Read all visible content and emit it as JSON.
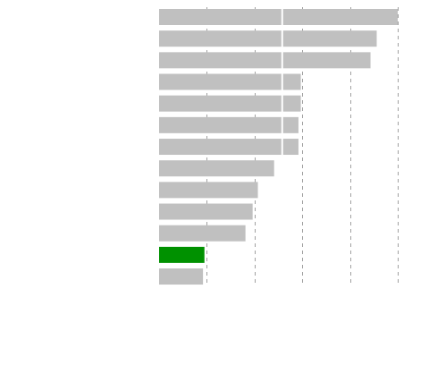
{
  "chart_data": {
    "type": "barh",
    "categories": [
      null,
      null,
      null,
      null,
      null,
      null,
      null,
      null,
      null,
      null,
      null,
      null,
      null
    ],
    "values": [
      5.0,
      4.56,
      4.43,
      2.97,
      2.97,
      2.92,
      2.92,
      2.41,
      2.07,
      1.96,
      1.81,
      0.95,
      0.92
    ],
    "colors": [
      "#c0c0c0",
      "#c0c0c0",
      "#c0c0c0",
      "#c0c0c0",
      "#c0c0c0",
      "#c0c0c0",
      "#c0c0c0",
      "#c0c0c0",
      "#c0c0c0",
      "#c0c0c0",
      "#c0c0c0",
      "#009100",
      "#c0c0c0"
    ],
    "xlim": [
      0,
      5
    ],
    "grid_lines": [
      1,
      2,
      3,
      4,
      5
    ],
    "reference_line": 2.58
  }
}
